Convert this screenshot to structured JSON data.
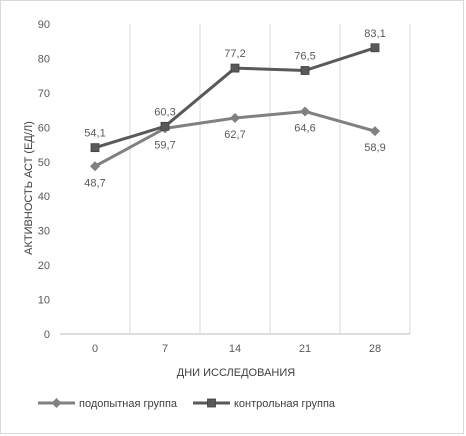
{
  "chart_data": {
    "type": "line",
    "categories": [
      "0",
      "7",
      "14",
      "21",
      "28"
    ],
    "series": [
      {
        "name": "подопытная группа",
        "values": [
          48.7,
          59.7,
          62.7,
          64.6,
          58.9
        ],
        "labels": [
          "48,7",
          "59,7",
          "62,7",
          "64,6",
          "58,9"
        ],
        "color": "#808080",
        "marker": "diamond"
      },
      {
        "name": "контрольная группа",
        "values": [
          54.1,
          60.3,
          77.2,
          76.5,
          83.1
        ],
        "labels": [
          "54,1",
          "60,3",
          "77,2",
          "76,5",
          "83,1"
        ],
        "color": "#595959",
        "marker": "square"
      }
    ],
    "xlabel": "ДНИ ИССЛЕДОВАНИЯ",
    "ylabel": "АКТИВНОСТЬ АСТ (ЕД/Л)",
    "ylim": [
      0,
      90
    ],
    "yticks": [
      "0",
      "10",
      "20",
      "30",
      "40",
      "50",
      "60",
      "70",
      "80",
      "90"
    ],
    "grid": "vertical",
    "legend": "bottom"
  }
}
